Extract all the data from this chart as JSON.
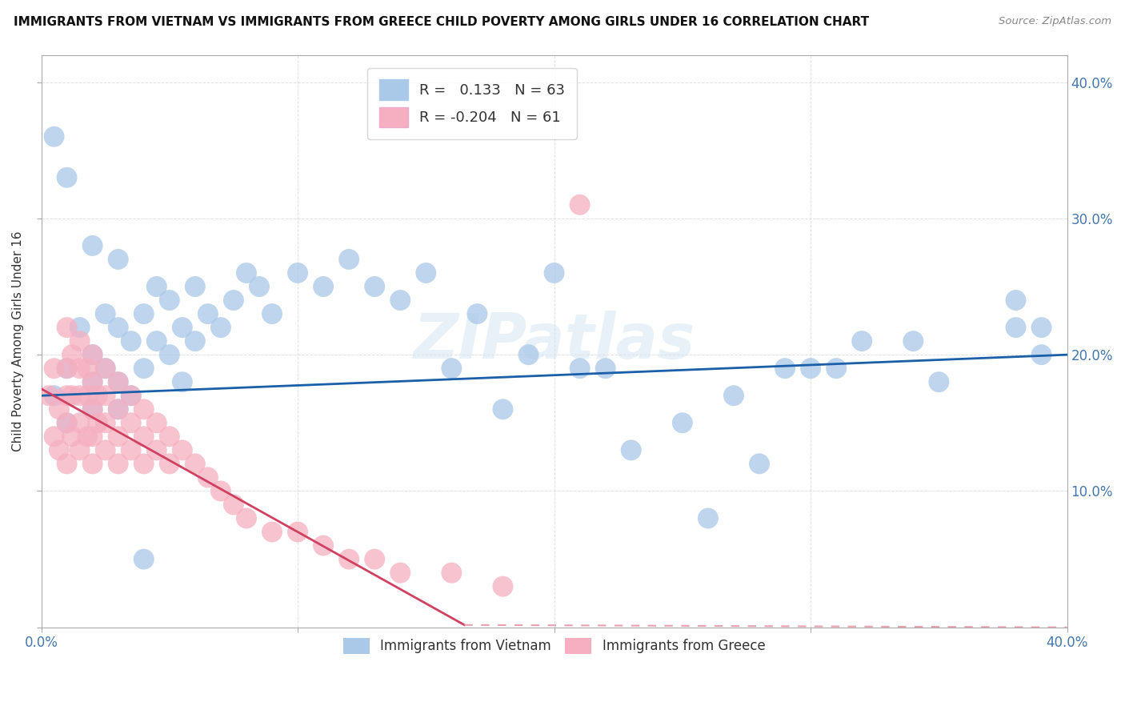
{
  "title": "IMMIGRANTS FROM VIETNAM VS IMMIGRANTS FROM GREECE CHILD POVERTY AMONG GIRLS UNDER 16 CORRELATION CHART",
  "source": "Source: ZipAtlas.com",
  "ylabel": "Child Poverty Among Girls Under 16",
  "xlim": [
    0.0,
    0.4
  ],
  "ylim": [
    0.0,
    0.42
  ],
  "xticks": [
    0.0,
    0.1,
    0.2,
    0.3,
    0.4
  ],
  "yticks": [
    0.0,
    0.1,
    0.2,
    0.3,
    0.4
  ],
  "xticklabels_left": "0.0%",
  "xticklabels_right": "40.0%",
  "right_yticklabels": [
    "",
    "10.0%",
    "20.0%",
    "30.0%",
    "40.0%"
  ],
  "vietnam_color": "#aac8e8",
  "greece_color": "#f5afc0",
  "vietnam_line_color": "#1a5fa8",
  "greece_line_solid_color": "#d04060",
  "greece_line_dash_color": "#e8a0b0",
  "vietnam_R": 0.133,
  "vietnam_N": 63,
  "greece_R": -0.204,
  "greece_N": 61,
  "legend_label_vietnam": "Immigrants from Vietnam",
  "legend_label_greece": "Immigrants from Greece",
  "watermark": "ZIPatlas",
  "background_color": "#ffffff",
  "grid_color": "#cccccc",
  "vietnam_x": [
    0.005,
    0.01,
    0.01,
    0.015,
    0.02,
    0.02,
    0.02,
    0.025,
    0.025,
    0.03,
    0.03,
    0.03,
    0.035,
    0.035,
    0.04,
    0.04,
    0.045,
    0.045,
    0.05,
    0.05,
    0.055,
    0.055,
    0.06,
    0.06,
    0.065,
    0.07,
    0.075,
    0.08,
    0.085,
    0.09,
    0.1,
    0.11,
    0.12,
    0.13,
    0.14,
    0.15,
    0.16,
    0.17,
    0.18,
    0.19,
    0.2,
    0.21,
    0.22,
    0.23,
    0.25,
    0.26,
    0.27,
    0.28,
    0.29,
    0.3,
    0.31,
    0.32,
    0.34,
    0.35,
    0.38,
    0.38,
    0.39,
    0.39,
    0.005,
    0.01,
    0.02,
    0.03,
    0.04
  ],
  "vietnam_y": [
    0.17,
    0.19,
    0.15,
    0.22,
    0.2,
    0.18,
    0.16,
    0.23,
    0.19,
    0.22,
    0.18,
    0.16,
    0.21,
    0.17,
    0.23,
    0.19,
    0.25,
    0.21,
    0.24,
    0.2,
    0.22,
    0.18,
    0.25,
    0.21,
    0.23,
    0.22,
    0.24,
    0.26,
    0.25,
    0.23,
    0.26,
    0.25,
    0.27,
    0.25,
    0.24,
    0.26,
    0.19,
    0.23,
    0.16,
    0.2,
    0.26,
    0.19,
    0.19,
    0.13,
    0.15,
    0.08,
    0.17,
    0.12,
    0.19,
    0.19,
    0.19,
    0.21,
    0.21,
    0.18,
    0.22,
    0.24,
    0.22,
    0.2,
    0.36,
    0.33,
    0.28,
    0.27,
    0.05
  ],
  "greece_x": [
    0.003,
    0.005,
    0.005,
    0.007,
    0.007,
    0.01,
    0.01,
    0.01,
    0.01,
    0.01,
    0.012,
    0.012,
    0.012,
    0.015,
    0.015,
    0.015,
    0.015,
    0.015,
    0.018,
    0.018,
    0.018,
    0.02,
    0.02,
    0.02,
    0.02,
    0.02,
    0.022,
    0.022,
    0.025,
    0.025,
    0.025,
    0.025,
    0.03,
    0.03,
    0.03,
    0.03,
    0.035,
    0.035,
    0.035,
    0.04,
    0.04,
    0.04,
    0.045,
    0.045,
    0.05,
    0.05,
    0.055,
    0.06,
    0.065,
    0.07,
    0.075,
    0.08,
    0.09,
    0.1,
    0.11,
    0.12,
    0.13,
    0.14,
    0.16,
    0.18,
    0.21
  ],
  "greece_y": [
    0.17,
    0.19,
    0.14,
    0.16,
    0.13,
    0.22,
    0.19,
    0.17,
    0.15,
    0.12,
    0.2,
    0.17,
    0.14,
    0.21,
    0.19,
    0.17,
    0.15,
    0.13,
    0.19,
    0.17,
    0.14,
    0.2,
    0.18,
    0.16,
    0.14,
    0.12,
    0.17,
    0.15,
    0.19,
    0.17,
    0.15,
    0.13,
    0.18,
    0.16,
    0.14,
    0.12,
    0.17,
    0.15,
    0.13,
    0.16,
    0.14,
    0.12,
    0.15,
    0.13,
    0.14,
    0.12,
    0.13,
    0.12,
    0.11,
    0.1,
    0.09,
    0.08,
    0.07,
    0.07,
    0.06,
    0.05,
    0.05,
    0.04,
    0.04,
    0.03,
    0.31
  ]
}
